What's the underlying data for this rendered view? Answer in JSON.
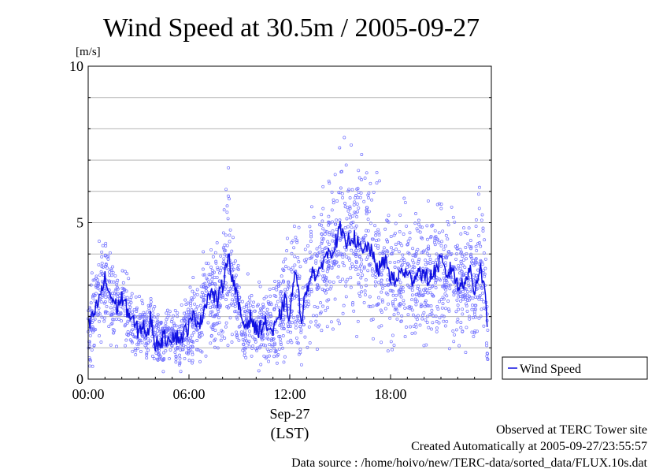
{
  "chart_data": {
    "type": "scatter+line",
    "title": "Wind Speed at 30.5m / 2005-09-27",
    "yunit": "[m/s]",
    "ylim": [
      0,
      10
    ],
    "yticks": [
      {
        "v": 0,
        "label": "0"
      },
      {
        "v": 5,
        "label": "5"
      },
      {
        "v": 10,
        "label": "10"
      }
    ],
    "xlim_hours": [
      0,
      24
    ],
    "xticks": [
      {
        "h": 0,
        "label": "00:00"
      },
      {
        "h": 6,
        "label": "06:00"
      },
      {
        "h": 12,
        "label": "12:00"
      },
      {
        "h": 18,
        "label": "18:00"
      }
    ],
    "date_label": "Sep-27",
    "xlabel": "(LST)",
    "grid": true,
    "legend": {
      "position": "right",
      "label": "Wind Speed"
    },
    "series": [
      {
        "name": "Wind Speed",
        "color": "#1010e0",
        "scatter_color": "#7070ff",
        "hours": [
          0.0,
          0.5,
          1.0,
          1.3,
          1.7,
          2.0,
          2.5,
          3.0,
          3.3,
          3.5,
          3.7,
          4.0,
          4.5,
          5.0,
          5.5,
          6.0,
          6.3,
          6.7,
          7.0,
          7.3,
          7.7,
          8.0,
          8.3,
          8.7,
          9.0,
          9.3,
          9.7,
          10.0,
          10.5,
          11.0,
          11.3,
          11.7,
          12.0,
          12.3,
          12.7,
          13.0,
          13.3,
          13.7,
          14.0,
          14.3,
          14.7,
          15.0,
          15.3,
          15.7,
          16.0,
          16.3,
          16.7,
          17.0,
          17.3,
          17.7,
          18.0,
          18.3,
          18.7,
          19.0,
          19.3,
          19.7,
          20.0,
          20.3,
          20.7,
          21.0,
          21.3,
          21.7,
          22.0,
          22.3,
          22.7,
          23.0,
          23.3,
          23.6,
          23.8
        ],
        "values": [
          1.6,
          2.3,
          3.2,
          2.7,
          2.3,
          2.6,
          2.0,
          1.5,
          1.8,
          1.2,
          2.0,
          1.1,
          1.3,
          1.4,
          1.3,
          1.7,
          2.0,
          1.8,
          2.5,
          2.8,
          2.5,
          3.0,
          4.0,
          3.0,
          2.2,
          1.7,
          2.0,
          1.5,
          1.8,
          1.5,
          1.8,
          2.5,
          2.0,
          3.5,
          2.0,
          2.8,
          3.5,
          3.2,
          3.9,
          4.0,
          4.3,
          4.8,
          4.3,
          4.6,
          4.4,
          4.0,
          4.3,
          3.8,
          3.5,
          3.8,
          3.3,
          3.1,
          3.5,
          3.3,
          3.2,
          3.5,
          3.3,
          3.2,
          3.5,
          3.8,
          3.3,
          3.6,
          2.9,
          3.1,
          3.5,
          2.8,
          3.6,
          3.0,
          1.1
        ]
      }
    ],
    "scatter_spread": [
      0.6,
      0.7,
      0.8,
      0.7,
      0.6,
      0.6,
      0.5,
      0.5,
      0.5,
      0.4,
      0.5,
      0.4,
      0.4,
      0.4,
      0.4,
      0.5,
      0.6,
      0.6,
      0.7,
      0.8,
      0.8,
      0.9,
      1.1,
      0.9,
      0.7,
      0.6,
      0.6,
      0.6,
      0.6,
      0.6,
      0.7,
      0.8,
      0.8,
      1.1,
      0.8,
      0.9,
      1.1,
      1.0,
      1.1,
      1.1,
      1.2,
      1.3,
      1.2,
      1.2,
      1.2,
      1.1,
      1.2,
      1.1,
      1.0,
      1.1,
      1.0,
      0.9,
      1.0,
      1.0,
      0.9,
      1.0,
      1.0,
      1.0,
      1.1,
      1.1,
      1.0,
      1.0,
      0.9,
      0.9,
      1.0,
      0.9,
      1.1,
      1.0,
      0.6
    ]
  },
  "footer": {
    "observed": "Observed at TERC Tower site",
    "created": "Created Automatically at 2005-09-27/23:55:57",
    "source": "Data source : /home/hoivo/new/TERC-data/sorted_data/FLUX.10s.dat"
  }
}
